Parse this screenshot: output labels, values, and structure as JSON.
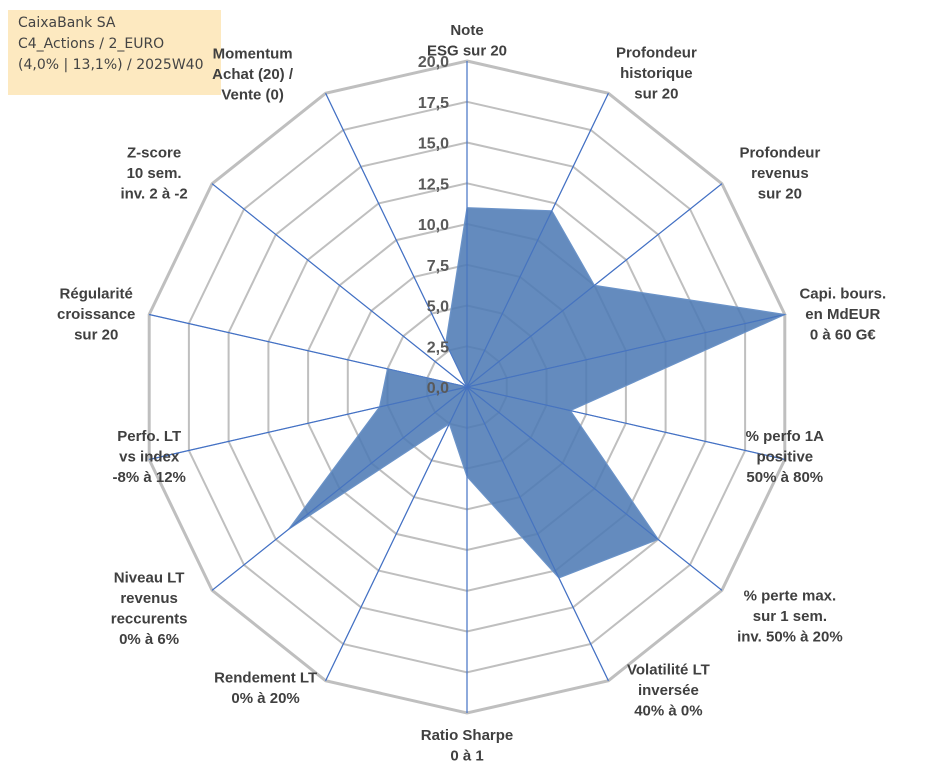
{
  "info_box": {
    "line1": "CaixaBank SA",
    "line2": "C4_Actions / 2_EURO",
    "line3": "(4,0% | 13,1%) / 2025W40"
  },
  "colors": {
    "grid": "#bfbfbf",
    "spoke": "#4472c4",
    "fill": "#4f7bb5",
    "area_stroke": "#6b93c8",
    "info_bg": "#fde9c0"
  },
  "chart_data": {
    "type": "radar",
    "title": "",
    "rmax": 20,
    "tick_step": 2.5,
    "tick_labels": [
      "0,0",
      "2,5",
      "5,0",
      "7,5",
      "10,0",
      "12,5",
      "15,0",
      "17,5",
      "20,0"
    ],
    "gridlines": true,
    "axes": [
      {
        "label": [
          "Note",
          "ESG sur 20"
        ],
        "value": 11.0
      },
      {
        "label": [
          "Profondeur",
          "historique",
          "sur 20"
        ],
        "value": 12.0
      },
      {
        "label": [
          "Profondeur",
          "revenus",
          "sur 20"
        ],
        "value": 10.0
      },
      {
        "label": [
          "Capi. bours.",
          "en MdEUR",
          "0 à 60 G€"
        ],
        "value": 20.0
      },
      {
        "label": [
          "% perfo 1A",
          "positive",
          "50% à 80%"
        ],
        "value": 6.5
      },
      {
        "label": [
          "% perte max.",
          "sur 1 sem.",
          "inv. 50% à 20%"
        ],
        "value": 15.0
      },
      {
        "label": [
          "Volatilité LT",
          "inversée",
          "40% à 0%"
        ],
        "value": 13.0
      },
      {
        "label": [
          "Ratio Sharpe",
          "0 à 1"
        ],
        "value": 5.5
      },
      {
        "label": [
          "Rendement LT",
          "0% à 20%"
        ],
        "value": 2.5
      },
      {
        "label": [
          "Niveau LT",
          "revenus",
          "reccurents",
          "0% à 6%"
        ],
        "value": 14.0
      },
      {
        "label": [
          "Perfo. LT",
          "vs index",
          "-8% à 12%"
        ],
        "value": 5.5
      },
      {
        "label": [
          "Régularité",
          "croissance",
          "sur 20"
        ],
        "value": 5.0
      },
      {
        "label": [
          "Z-score",
          "10 sem.",
          "inv. 2 à -2"
        ],
        "value": 0.0
      },
      {
        "label": [
          "Momentum",
          "Achat (20) /",
          "Vente (0)"
        ],
        "value": 3.0
      }
    ]
  }
}
